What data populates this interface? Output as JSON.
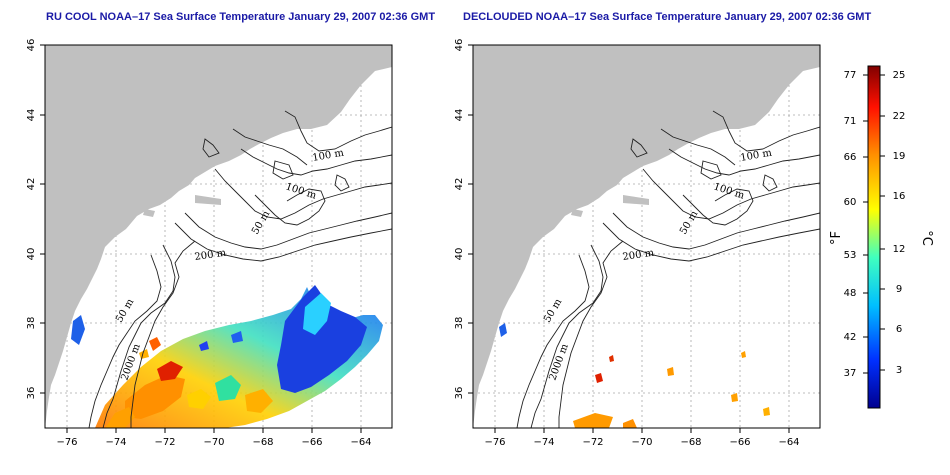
{
  "panels": [
    {
      "title": "RU COOL NOAA–17 Sea Surface Temperature January 29, 2007 02:36 GMT",
      "contour_labels": [
        "100 m",
        "100 m",
        "50 m",
        "200 m",
        "50 m",
        "2000 m"
      ]
    },
    {
      "title": "DECLOUDED NOAA–17 Sea Surface Temperature January 29, 2007 02:36 GMT",
      "contour_labels": [
        "100 m",
        "100 m",
        "50 m",
        "200 m",
        "50 m",
        "2000 m"
      ]
    }
  ],
  "x_ticks": [
    "−76",
    "−74",
    "−72",
    "−70",
    "−68",
    "−66",
    "−64"
  ],
  "y_ticks": [
    "46",
    "44",
    "42",
    "40",
    "38",
    "36"
  ],
  "colorbar": {
    "fahrenheit_unit": "°F",
    "celsius_unit": "°C",
    "fahrenheit_ticks": [
      "77",
      "71",
      "66",
      "60",
      "53",
      "48",
      "42",
      "37"
    ],
    "celsius_ticks": [
      "25",
      "22",
      "19",
      "16",
      "12",
      "9",
      "6",
      "3"
    ]
  },
  "colors": {
    "land": "#c0c0c0",
    "title": "#1a1aa6",
    "grid": "#a8a8a8",
    "colorbar_stops": [
      "#00008f",
      "#0040ff",
      "#00bfff",
      "#40ffbf",
      "#ffff00",
      "#ff8000",
      "#ff0000",
      "#800000"
    ]
  }
}
